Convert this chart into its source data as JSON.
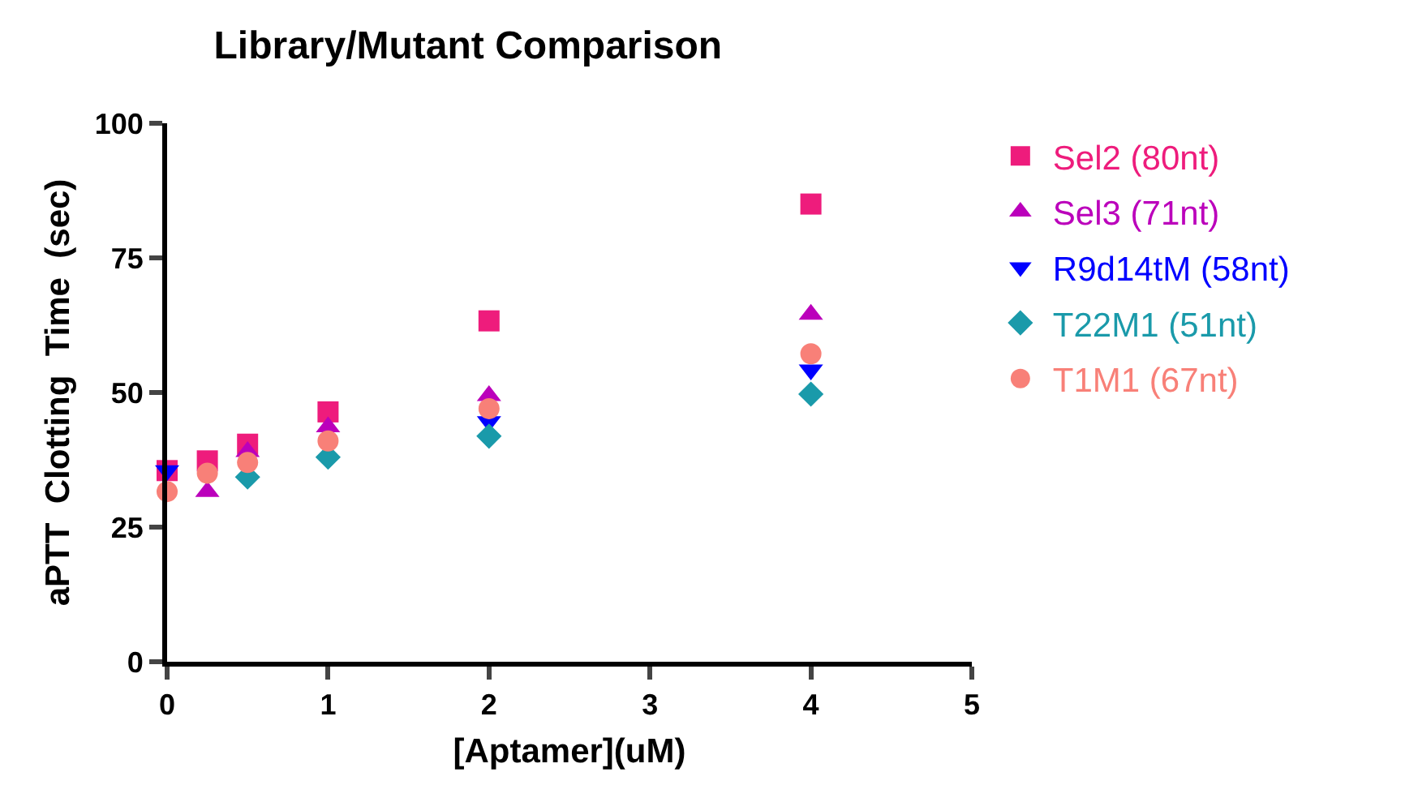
{
  "chart_data": {
    "type": "scatter",
    "title": "Library/Mutant Comparison",
    "xlabel": "[Aptamer](uM)",
    "ylabel": "aPTT  Clotting  Time  (sec)",
    "x": [
      0,
      0.25,
      0.5,
      1,
      2,
      4
    ],
    "series": [
      {
        "name": "Sel2 (80nt)",
        "color": "#ee1c7c",
        "marker": "square",
        "values": [
          35.5,
          37.3,
          40.4,
          46.4,
          63.3,
          85
        ]
      },
      {
        "name": "Sel3 (71nt)",
        "color": "#bb00bb",
        "marker": "triangle",
        "values": [
          null,
          31.6,
          39,
          43.6,
          49.4,
          64.5
        ]
      },
      {
        "name": "R9d14tM (58nt)",
        "color": "#0000ff",
        "marker": "triangle-down",
        "values": [
          35.5,
          null,
          null,
          null,
          44.6,
          54.2
        ]
      },
      {
        "name": "T22M1 (51nt)",
        "color": "#1a9aaa",
        "marker": "diamond",
        "values": [
          null,
          null,
          34.3,
          38,
          41.9,
          49.7
        ]
      },
      {
        "name": "T1M1 (67nt)",
        "color": "#f88078",
        "marker": "circle",
        "values": [
          31.6,
          35,
          37,
          41,
          47,
          57.2
        ]
      }
    ],
    "xlim": [
      0,
      5
    ],
    "xticks": [
      0,
      1,
      2,
      3,
      4,
      5
    ],
    "ylim": [
      0,
      100
    ],
    "yticks": [
      0,
      25,
      50,
      75,
      100
    ],
    "grid": false,
    "legend": "right"
  }
}
